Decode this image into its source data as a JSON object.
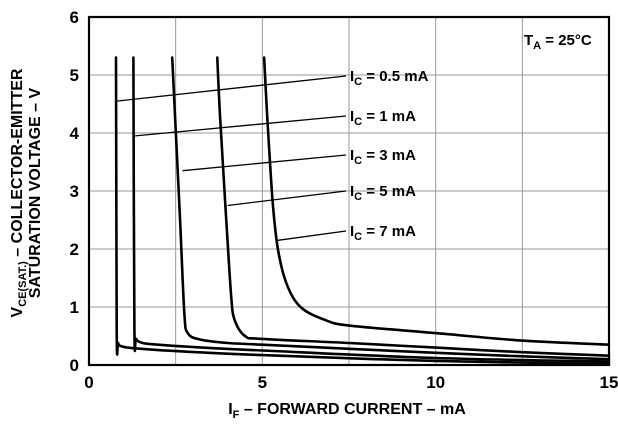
{
  "chart_data": {
    "type": "line",
    "xlabel_main": "I",
    "xlabel_sub": "F",
    "xlabel_rest": " – FORWARD CURRENT – mA",
    "ylabel_line1_main": "V",
    "ylabel_line1_sub": "CE(SAT.)",
    "ylabel_line1_rest": " – COLLECTOR-EMITTER",
    "ylabel_line2": "SATURATION VOLTAGE – V",
    "xlim": [
      0,
      15
    ],
    "ylim": [
      0,
      6
    ],
    "x_ticks": [
      "0",
      "5",
      "10",
      "15"
    ],
    "y_ticks": [
      "0",
      "1",
      "2",
      "3",
      "4",
      "5",
      "6"
    ],
    "grid": true,
    "condition": {
      "main": "T",
      "sub": "A",
      "rest": " = 25°C"
    },
    "series": [
      {
        "name": "I_C = 0.5 mA",
        "label_main": "I",
        "label_sub": "C",
        "label_rest": " = 0.5 mA",
        "x": [
          0.78,
          0.8,
          0.84,
          0.95,
          1.3,
          2.5,
          5,
          10,
          15
        ],
        "y": [
          5.3,
          0.6,
          0.38,
          0.32,
          0.29,
          0.24,
          0.17,
          0.07,
          0.02
        ]
      },
      {
        "name": "I_C = 1 mA",
        "label_main": "I",
        "label_sub": "C",
        "label_rest": " = 1 mA",
        "x": [
          1.28,
          1.31,
          1.36,
          1.55,
          2.0,
          3,
          5,
          10,
          15
        ],
        "y": [
          5.3,
          0.65,
          0.45,
          0.38,
          0.35,
          0.31,
          0.25,
          0.12,
          0.06
        ]
      },
      {
        "name": "I_C = 3 mA",
        "label_main": "I",
        "label_sub": "C",
        "label_rest": " = 3 mA",
        "x": [
          2.4,
          2.48,
          2.62,
          2.75,
          2.85,
          3.2,
          4,
          5,
          7.5,
          10,
          12.5,
          15
        ],
        "y": [
          5.3,
          4.3,
          2.6,
          0.9,
          0.55,
          0.44,
          0.38,
          0.35,
          0.28,
          0.21,
          0.15,
          0.1
        ]
      },
      {
        "name": "I_C = 5 mA",
        "label_main": "I",
        "label_sub": "C",
        "label_rest": " = 5 mA",
        "x": [
          3.7,
          3.78,
          3.95,
          4.1,
          4.2,
          4.5,
          5,
          7.5,
          10,
          12.5,
          15
        ],
        "y": [
          5.3,
          4.3,
          2.6,
          1.2,
          0.78,
          0.5,
          0.45,
          0.38,
          0.3,
          0.22,
          0.16
        ]
      },
      {
        "name": "I_C = 7 mA",
        "label_main": "I",
        "label_sub": "C",
        "label_rest": " = 7 mA",
        "x": [
          5.05,
          5.15,
          5.3,
          5.45,
          5.7,
          6.1,
          6.8,
          7.5,
          10,
          12.5,
          15
        ],
        "y": [
          5.3,
          4.2,
          2.8,
          2.0,
          1.4,
          1.0,
          0.78,
          0.68,
          0.55,
          0.42,
          0.35
        ]
      }
    ]
  }
}
